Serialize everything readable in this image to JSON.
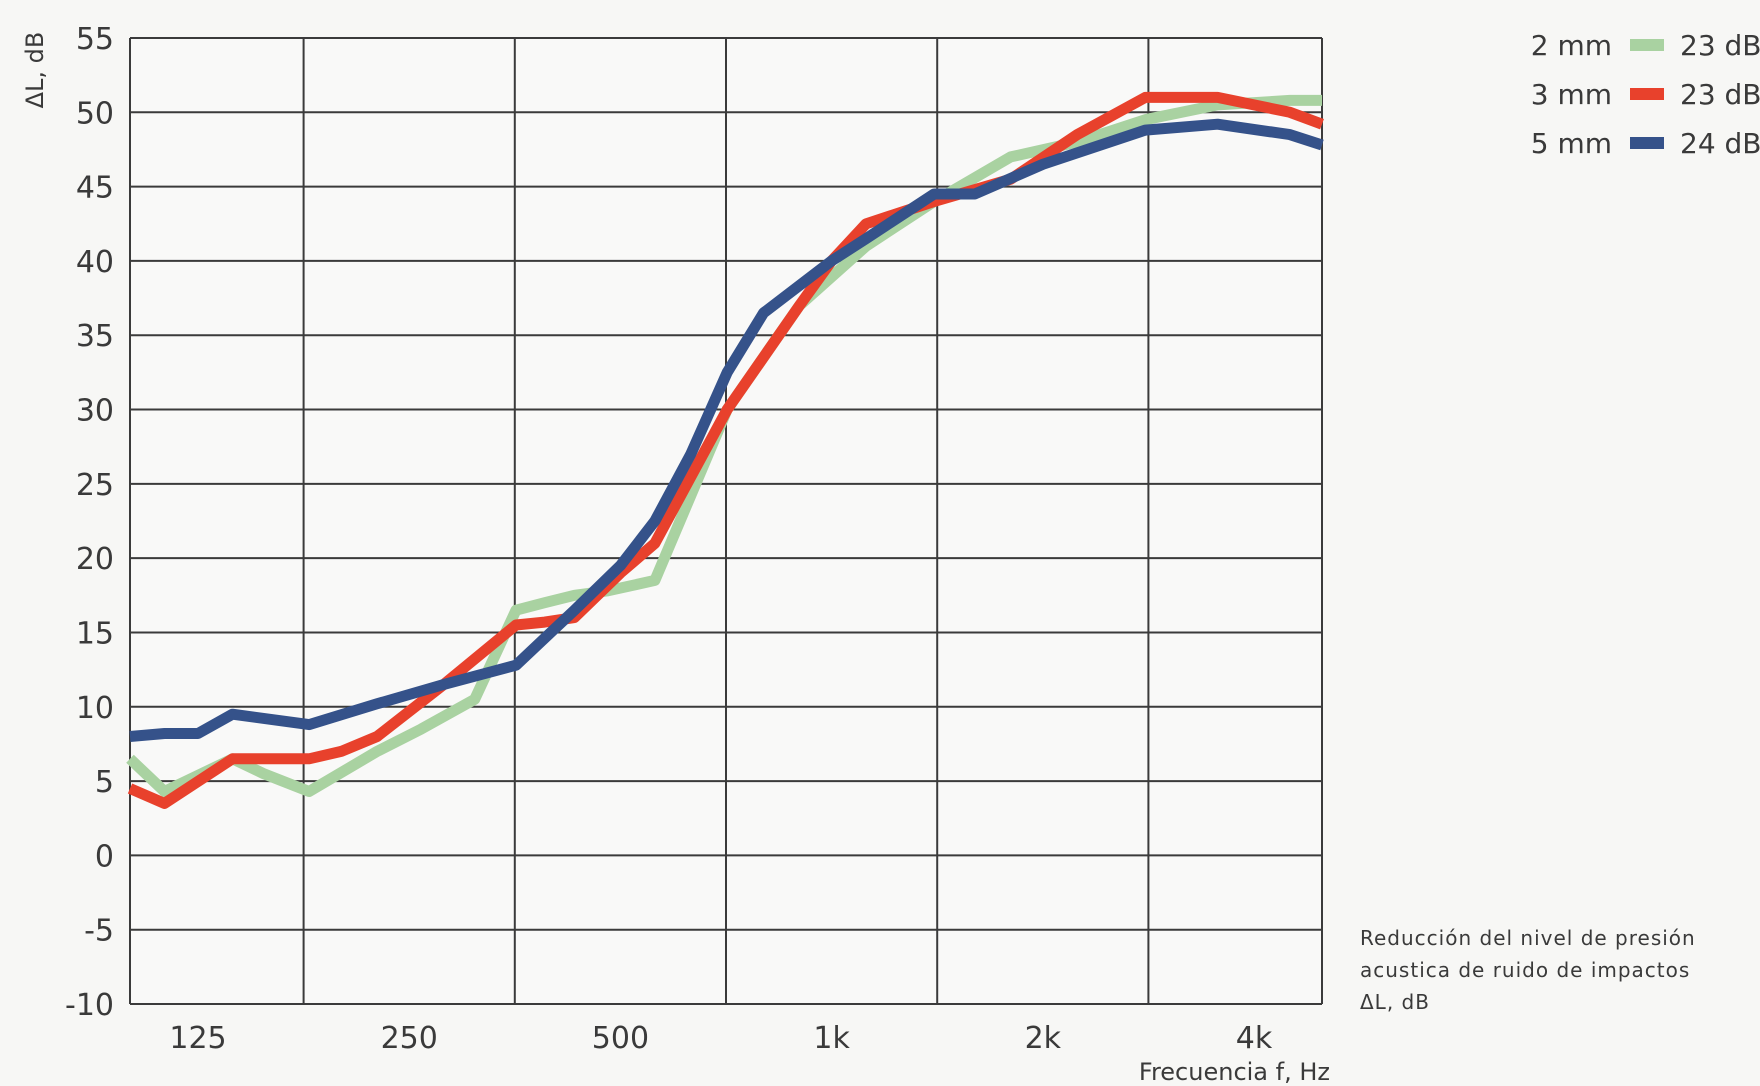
{
  "chart_data": {
    "type": "line",
    "title": "",
    "xlabel": "Frecuencia f, Hz",
    "ylabel": "ΔL, dB",
    "x_scale": "log2",
    "x_range_hz": [
      100,
      5000
    ],
    "x_ticks": [
      {
        "value": 125,
        "label": "125"
      },
      {
        "value": 250,
        "label": "250"
      },
      {
        "value": 500,
        "label": "500"
      },
      {
        "value": 1000,
        "label": "1k"
      },
      {
        "value": 2000,
        "label": "2k"
      },
      {
        "value": 4000,
        "label": "4k"
      }
    ],
    "ylim": [
      -10,
      55
    ],
    "y_ticks": [
      -10,
      -5,
      0,
      5,
      10,
      15,
      20,
      25,
      30,
      35,
      40,
      45,
      50,
      55
    ],
    "grid": true,
    "legend_position": "top-right, outside plot",
    "series": [
      {
        "name": "2 mm",
        "rating": "23 dB",
        "color": "#a9d2a1",
        "points": [
          [
            100,
            6.5
          ],
          [
            112,
            4.3
          ],
          [
            140,
            6.5
          ],
          [
            155,
            5.5
          ],
          [
            180,
            4.3
          ],
          [
            225,
            7.0
          ],
          [
            260,
            8.5
          ],
          [
            310,
            10.5
          ],
          [
            355,
            16.5
          ],
          [
            390,
            17.0
          ],
          [
            430,
            17.5
          ],
          [
            480,
            17.8
          ],
          [
            560,
            18.5
          ],
          [
            710,
            30.0
          ],
          [
            900,
            37.0
          ],
          [
            1120,
            41.0
          ],
          [
            1400,
            44.0
          ],
          [
            1800,
            47.0
          ],
          [
            2240,
            48.0
          ],
          [
            2800,
            49.5
          ],
          [
            3550,
            50.5
          ],
          [
            4500,
            50.8
          ],
          [
            5000,
            50.8
          ]
        ]
      },
      {
        "name": "3 mm",
        "rating": "23 dB",
        "color": "#e8412c",
        "points": [
          [
            100,
            4.5
          ],
          [
            112,
            3.5
          ],
          [
            140,
            6.5
          ],
          [
            180,
            6.5
          ],
          [
            200,
            7.0
          ],
          [
            225,
            8.0
          ],
          [
            280,
            11.5
          ],
          [
            355,
            15.5
          ],
          [
            390,
            15.7
          ],
          [
            430,
            16.0
          ],
          [
            500,
            19.0
          ],
          [
            560,
            21.0
          ],
          [
            710,
            30.0
          ],
          [
            900,
            37.0
          ],
          [
            1000,
            40.0
          ],
          [
            1120,
            42.5
          ],
          [
            1400,
            44.0
          ],
          [
            1800,
            45.5
          ],
          [
            2240,
            48.5
          ],
          [
            2800,
            51.0
          ],
          [
            3550,
            51.0
          ],
          [
            4500,
            50.0
          ],
          [
            5000,
            49.2
          ]
        ]
      },
      {
        "name": "5 mm",
        "rating": "24 dB",
        "color": "#35528a",
        "points": [
          [
            100,
            8.0
          ],
          [
            112,
            8.2
          ],
          [
            125,
            8.2
          ],
          [
            140,
            9.5
          ],
          [
            180,
            8.8
          ],
          [
            225,
            10.2
          ],
          [
            280,
            11.5
          ],
          [
            355,
            12.8
          ],
          [
            430,
            16.5
          ],
          [
            500,
            19.5
          ],
          [
            560,
            22.5
          ],
          [
            630,
            27.0
          ],
          [
            710,
            32.5
          ],
          [
            800,
            36.5
          ],
          [
            1000,
            40.0
          ],
          [
            1120,
            41.5
          ],
          [
            1400,
            44.5
          ],
          [
            1600,
            44.5
          ],
          [
            2000,
            46.5
          ],
          [
            2800,
            48.8
          ],
          [
            3550,
            49.2
          ],
          [
            4500,
            48.5
          ],
          [
            5000,
            47.8
          ]
        ]
      }
    ],
    "annotation": {
      "lines": [
        "Reducción del nivel de presión",
        "acustica de ruido de impactos",
        "ΔL, dB"
      ]
    }
  }
}
